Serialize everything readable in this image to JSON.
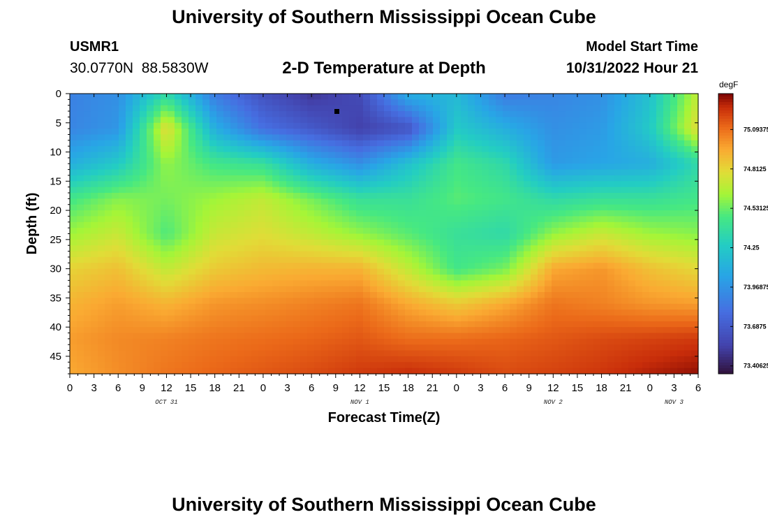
{
  "header": {
    "title": "University of Southern Mississippi Ocean Cube",
    "station_id": "USMR1",
    "coords": "30.0770N  88.5830W",
    "plot_title": "2-D Temperature at Depth",
    "model_start_label": "Model Start Time",
    "model_start_value": "10/31/2022 Hour 21"
  },
  "footer": {
    "title": "University of Southern Mississippi Ocean Cube"
  },
  "chart_data": {
    "type": "heatmap",
    "title": "2-D Temperature at Depth",
    "xlabel": "Forecast Time(Z)",
    "ylabel": "Depth (ft)",
    "x_tick_labels": [
      "0",
      "3",
      "6",
      "9",
      "12",
      "15",
      "18",
      "21",
      "0",
      "3",
      "6",
      "9",
      "12",
      "15",
      "18",
      "21",
      "0",
      "3",
      "6",
      "9",
      "12",
      "15",
      "18",
      "21",
      "0",
      "3",
      "6"
    ],
    "x_range_hours": [
      0,
      78
    ],
    "date_labels": [
      {
        "label": "OCT 31",
        "hour": 12
      },
      {
        "label": "NOV 1",
        "hour": 36
      },
      {
        "label": "NOV 2",
        "hour": 60
      },
      {
        "label": "NOV 3",
        "hour": 75
      }
    ],
    "y_ticks": [
      0,
      5,
      10,
      15,
      20,
      25,
      30,
      35,
      40,
      45
    ],
    "y_range_ft": [
      0,
      48
    ],
    "colorbar": {
      "unit": "degF",
      "tick_labels": [
        "75.09375",
        "74.8125",
        "74.53125",
        "74.25",
        "73.96875",
        "73.6875",
        "73.40625"
      ],
      "tick_values": [
        75.09375,
        74.8125,
        74.53125,
        74.25,
        73.96875,
        73.6875,
        73.40625
      ],
      "range": [
        73.35,
        75.35
      ]
    },
    "grid_hours": [
      0,
      6,
      12,
      18,
      24,
      30,
      36,
      42,
      48,
      54,
      60,
      66,
      72,
      78
    ],
    "grid_depths_ft": [
      0,
      6,
      12,
      18,
      24,
      30,
      36,
      42,
      48
    ],
    "values": [
      [
        73.88,
        73.95,
        74.35,
        73.85,
        73.63,
        73.5,
        73.6,
        74.1,
        74.15,
        73.85,
        73.9,
        73.95,
        74.2,
        74.7
      ],
      [
        73.9,
        73.98,
        74.8,
        74.1,
        73.8,
        73.68,
        73.55,
        73.65,
        74.25,
        74.1,
        73.95,
        74.0,
        74.25,
        74.8
      ],
      [
        74.1,
        74.25,
        74.6,
        74.45,
        74.4,
        74.1,
        73.95,
        74.2,
        74.45,
        74.35,
        74.0,
        74.05,
        74.1,
        74.35
      ],
      [
        74.45,
        74.58,
        74.55,
        74.62,
        74.7,
        74.55,
        74.4,
        74.4,
        74.5,
        74.45,
        74.35,
        74.4,
        74.4,
        74.45
      ],
      [
        74.62,
        74.72,
        74.48,
        74.72,
        74.78,
        74.7,
        74.6,
        74.5,
        74.4,
        74.35,
        74.6,
        74.72,
        74.62,
        74.58
      ],
      [
        74.82,
        74.88,
        74.7,
        74.85,
        74.9,
        74.92,
        74.92,
        74.7,
        74.45,
        74.55,
        74.95,
        75.0,
        74.88,
        74.8
      ],
      [
        74.92,
        74.98,
        74.92,
        75.0,
        75.02,
        75.05,
        75.08,
        74.95,
        74.85,
        74.95,
        75.08,
        75.05,
        75.0,
        74.98
      ],
      [
        74.98,
        75.03,
        75.05,
        75.08,
        75.1,
        75.12,
        75.15,
        75.1,
        75.1,
        75.12,
        75.15,
        75.18,
        75.2,
        75.22
      ],
      [
        74.95,
        75.02,
        75.08,
        75.12,
        75.15,
        75.18,
        75.22,
        75.25,
        75.22,
        75.18,
        75.2,
        75.23,
        75.28,
        75.32
      ]
    ]
  }
}
